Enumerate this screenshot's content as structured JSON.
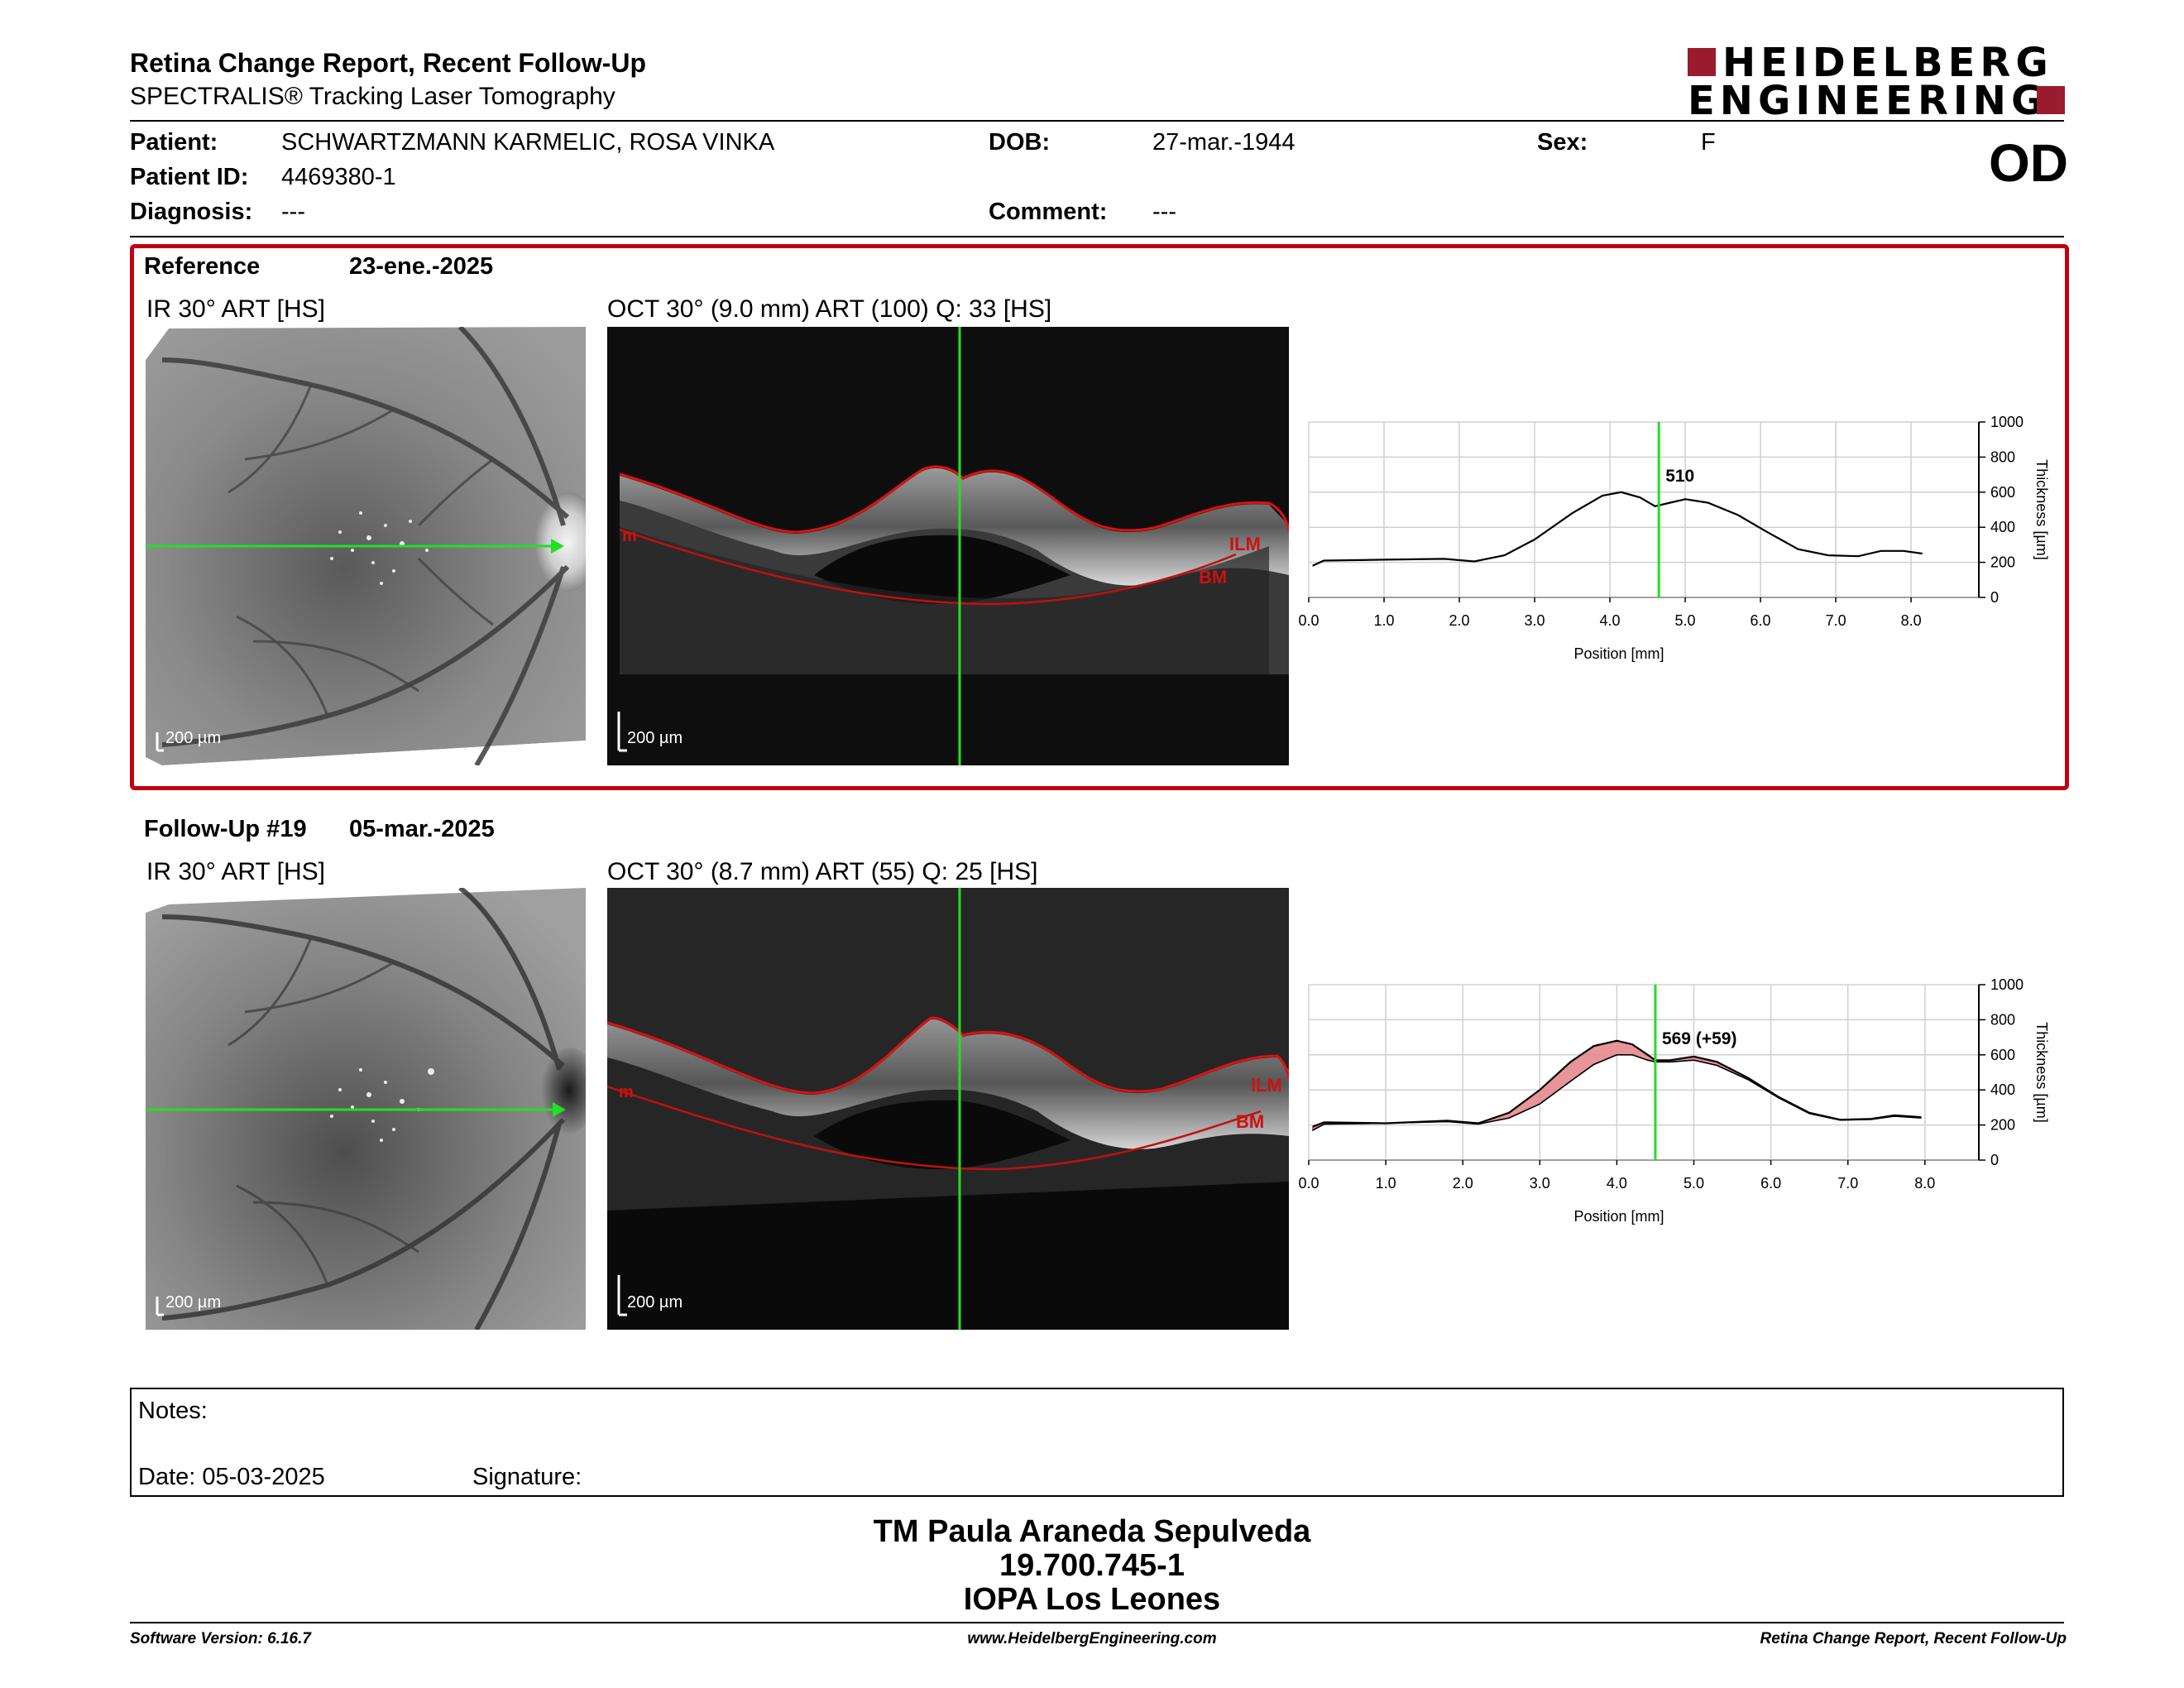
{
  "header": {
    "title": "Retina Change Report, Recent Follow-Up",
    "subtitle": "SPECTRALIS® Tracking Laser Tomography",
    "logo_line1": "HEIDELBERG",
    "logo_line2": "ENGINEERING",
    "eye": "OD"
  },
  "patient": {
    "patient_label": "Patient:",
    "patient_name": "SCHWARTZMANN KARMELIC, ROSA VINKA",
    "id_label": "Patient ID:",
    "id_value": "4469380-1",
    "diagnosis_label": "Diagnosis:",
    "diagnosis_value": "---",
    "dob_label": "DOB:",
    "dob_value": "27-mar.-1944",
    "comment_label": "Comment:",
    "comment_value": "---",
    "sex_label": "Sex:",
    "sex_value": "F"
  },
  "reference": {
    "heading": "Reference",
    "date": "23-ene.-2025",
    "ir_label": "IR 30° ART [HS]",
    "oct_label": "OCT 30° (9.0 mm) ART (100) Q: 33 [HS]",
    "scale_ir": "200 µm",
    "scale_oct": "200 µm",
    "ilm": "ILM",
    "bm": "BM",
    "m": "m"
  },
  "followup": {
    "heading": "Follow-Up #19",
    "date": "05-mar.-2025",
    "ir_label": "IR 30° ART [HS]",
    "oct_label": "OCT 30° (8.7 mm) ART (55) Q: 25 [HS]",
    "scale_ir": "200 µm",
    "scale_oct": "200 µm",
    "ilm": "ILM",
    "bm": "BM",
    "m": "m"
  },
  "chart_data": [
    {
      "type": "line",
      "xlabel": "Position [mm]",
      "ylabel": "Thickness [µm]",
      "xlim": [
        0,
        8.9
      ],
      "ylim": [
        0,
        1000
      ],
      "x_ticks": [
        "0.0",
        "1.0",
        "2.0",
        "3.0",
        "4.0",
        "5.0",
        "6.0",
        "7.0",
        "8.0"
      ],
      "y_ticks": [
        "0",
        "200",
        "400",
        "600",
        "800",
        "1000"
      ],
      "marker_x": 4.65,
      "marker_label": "510",
      "grid": true,
      "series": [
        {
          "x": [
            0.05,
            0.2,
            1.0,
            1.8,
            2.2,
            2.6,
            3.0,
            3.5,
            3.9,
            4.15,
            4.4,
            4.6,
            4.8,
            5.0,
            5.3,
            5.7,
            6.1,
            6.5,
            6.9,
            7.3,
            7.6,
            7.9,
            8.15
          ],
          "values": [
            180,
            210,
            215,
            220,
            205,
            240,
            330,
            480,
            580,
            600,
            570,
            520,
            540,
            560,
            540,
            470,
            370,
            275,
            240,
            235,
            265,
            265,
            250
          ]
        }
      ]
    },
    {
      "type": "line",
      "xlabel": "Position [mm]",
      "ylabel": "Thickness [µm]",
      "xlim": [
        0,
        8.7
      ],
      "ylim": [
        0,
        1000
      ],
      "x_ticks": [
        "0.0",
        "1.0",
        "2.0",
        "3.0",
        "4.0",
        "5.0",
        "6.0",
        "7.0",
        "8.0"
      ],
      "y_ticks": [
        "0",
        "200",
        "400",
        "600",
        "800",
        "1000"
      ],
      "marker_x": 4.5,
      "marker_label": "569 (+59)",
      "grid": true,
      "series": [
        {
          "x": [
            0.05,
            0.2,
            1.0,
            1.8,
            2.2,
            2.6,
            3.0,
            3.4,
            3.7,
            4.0,
            4.2,
            4.4,
            4.5,
            4.7,
            5.0,
            5.3,
            5.7,
            6.1,
            6.5,
            6.9,
            7.3,
            7.6,
            7.95
          ],
          "values": [
            190,
            215,
            210,
            225,
            210,
            270,
            400,
            560,
            650,
            680,
            660,
            600,
            569,
            570,
            590,
            560,
            470,
            360,
            270,
            230,
            235,
            255,
            245
          ]
        },
        {
          "x": [
            0.05,
            0.2,
            1.0,
            1.8,
            2.2,
            2.6,
            3.0,
            3.4,
            3.7,
            4.0,
            4.2,
            4.4,
            4.5,
            4.7,
            5.0,
            5.3,
            5.7,
            6.1,
            6.5,
            6.9,
            7.3,
            7.6,
            7.95
          ],
          "values": [
            170,
            205,
            210,
            220,
            205,
            240,
            320,
            450,
            545,
            600,
            600,
            570,
            560,
            560,
            570,
            540,
            460,
            355,
            265,
            228,
            232,
            250,
            240
          ]
        }
      ]
    }
  ],
  "notes": {
    "notes_label": "Notes:",
    "date_label": "Date: 05-03-2025",
    "signature_label": "Signature:"
  },
  "signature": {
    "name": "TM Paula Araneda Sepulveda",
    "id": "19.700.745-1",
    "org": "IOPA Los Leones"
  },
  "footer": {
    "software": "Software Version: 6.16.7",
    "website": "www.HeidelbergEngineering.com",
    "report": "Retina Change Report, Recent Follow-Up"
  }
}
